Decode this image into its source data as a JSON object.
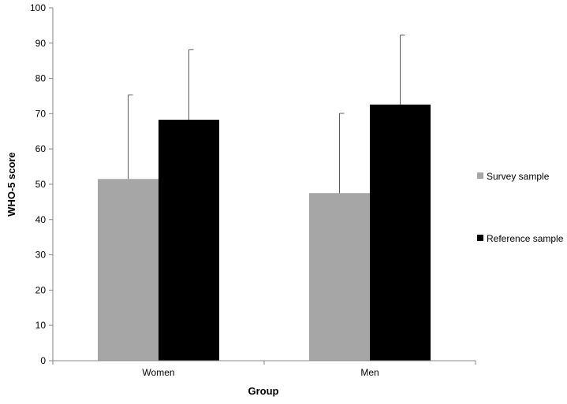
{
  "chart_data": {
    "type": "bar",
    "title": "",
    "xlabel": "Group",
    "ylabel": "WHO-5 score",
    "categories": [
      "Women",
      "Men"
    ],
    "ylim": [
      0,
      100
    ],
    "yticks": [
      0,
      10,
      20,
      30,
      40,
      50,
      60,
      70,
      80,
      90,
      100
    ],
    "grid": false,
    "legend_position": "right",
    "series": [
      {
        "name": "Survey sample",
        "color": "#a6a6a6",
        "values": [
          51.5,
          47.5
        ],
        "error_upper": [
          75.3,
          70.1
        ]
      },
      {
        "name": "Reference sample",
        "color": "#000000",
        "values": [
          68.3,
          72.6
        ],
        "error_upper": [
          88.2,
          92.3
        ]
      }
    ]
  }
}
